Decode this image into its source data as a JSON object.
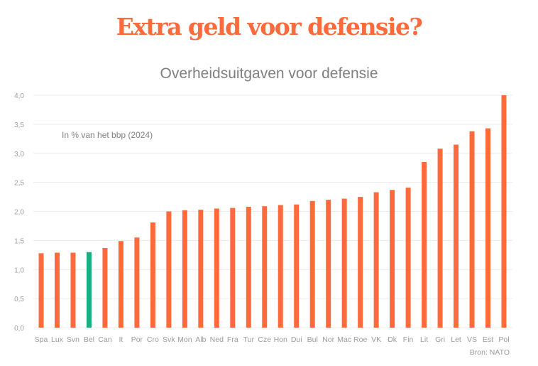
{
  "header": {
    "title": "Extra geld voor defensie?"
  },
  "chart_data": {
    "type": "bar",
    "title": "Overheidsuitgaven voor defensie",
    "subtitle": "In % van het bbp (2024)",
    "source": "Bron: NATO",
    "xlabel": "",
    "ylabel": "",
    "ylim": [
      0,
      4.0
    ],
    "yticks": [
      0.0,
      0.5,
      1.0,
      1.5,
      2.0,
      2.5,
      3.0,
      3.5,
      4.0
    ],
    "ytick_labels": [
      "0,0",
      "0,5",
      "1,0",
      "1,5",
      "2,0",
      "2,5",
      "3,0",
      "3,5",
      "4,0"
    ],
    "grid": true,
    "categories": [
      "Spa",
      "Lux",
      "Svn",
      "Bel",
      "Can",
      "It",
      "Por",
      "Cro",
      "Svk",
      "Mon",
      "Alb",
      "Ned",
      "Fra",
      "Tur",
      "Cze",
      "Hon",
      "Dui",
      "Bul",
      "Nor",
      "Mac",
      "Roe",
      "VK",
      "Dk",
      "Fin",
      "Lit",
      "Gri",
      "Let",
      "VS",
      "Est",
      "Pol"
    ],
    "values": [
      1.28,
      1.29,
      1.29,
      1.3,
      1.37,
      1.49,
      1.55,
      1.81,
      2.0,
      2.02,
      2.03,
      2.05,
      2.06,
      2.08,
      2.09,
      2.11,
      2.12,
      2.18,
      2.2,
      2.22,
      2.25,
      2.33,
      2.37,
      2.41,
      2.85,
      3.08,
      3.15,
      3.38,
      3.43,
      4.0
    ],
    "highlight": "Bel",
    "colors": {
      "bar": "#ff6a3c",
      "highlight": "#1aaf82",
      "grid": "#ececec"
    }
  }
}
